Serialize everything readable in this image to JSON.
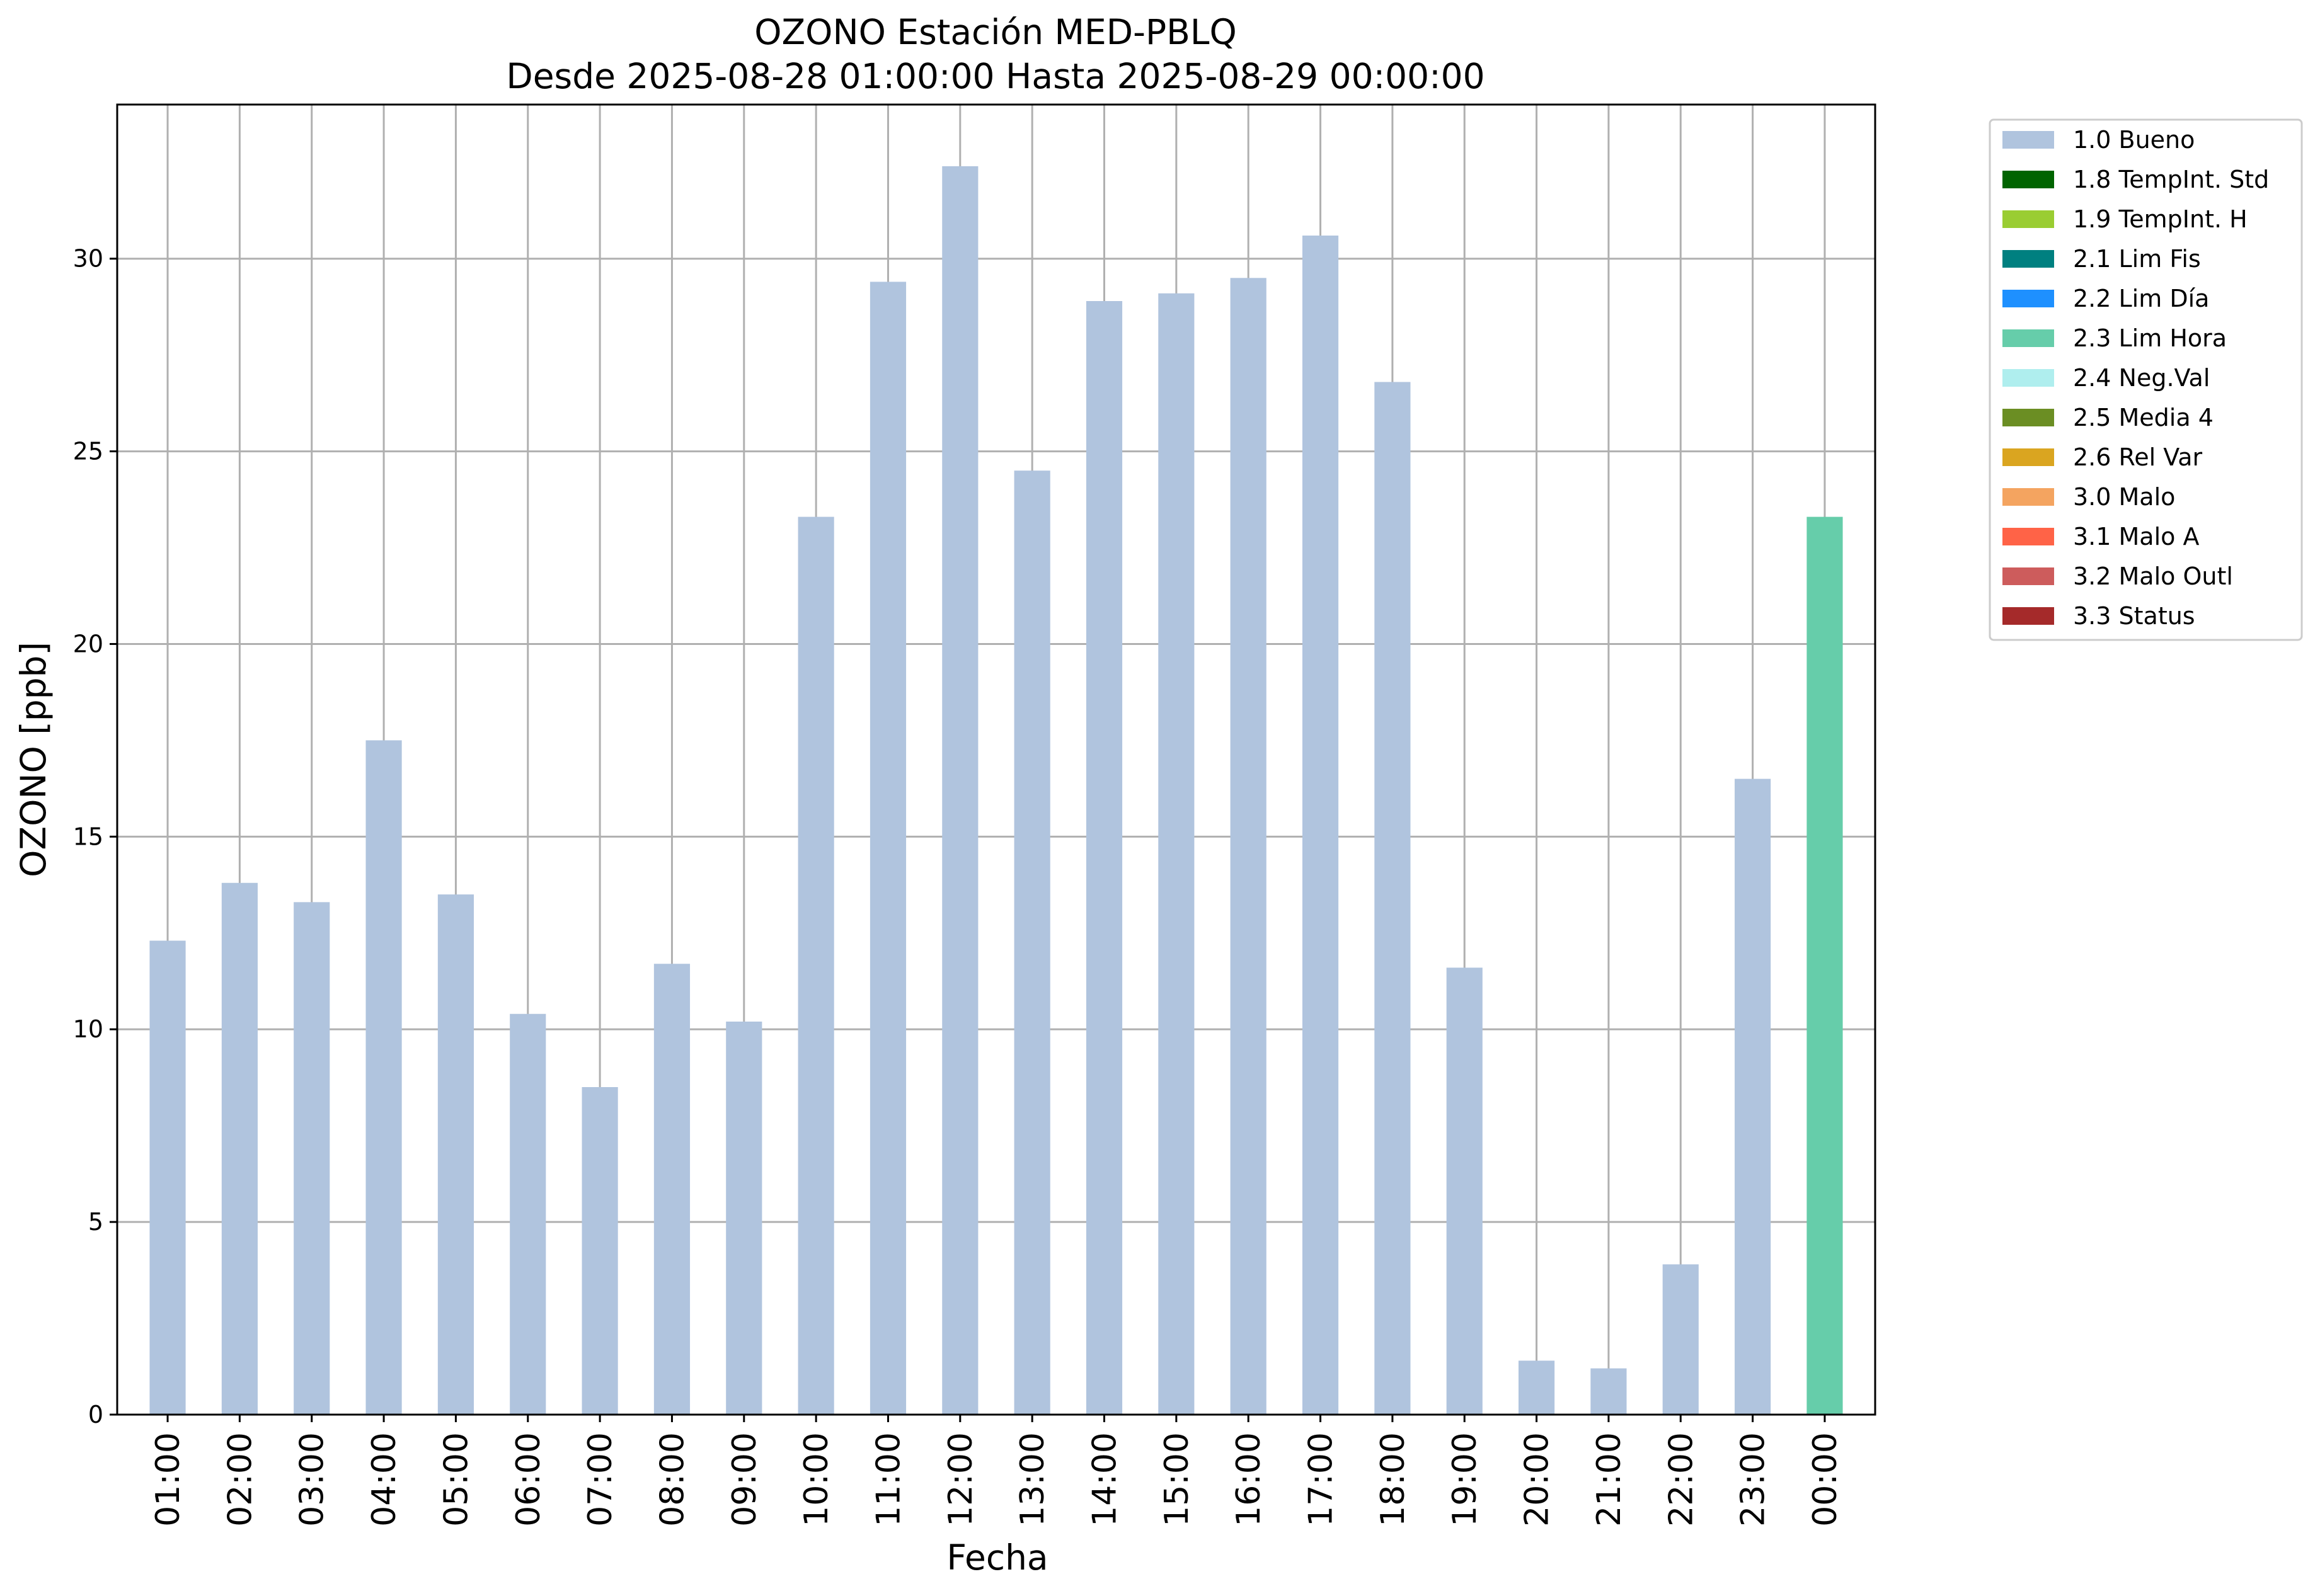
{
  "chart_data": {
    "type": "bar",
    "title": "OZONO Estación MED-PBLQ",
    "subtitle": "Desde 2025-08-28 01:00:00 Hasta 2025-08-29 00:00:00",
    "xlabel": "Fecha",
    "ylabel": "OZONO [ppb]",
    "ylim": [
      0,
      34
    ],
    "yticks": [
      0,
      5,
      10,
      15,
      20,
      25,
      30
    ],
    "grid": true,
    "legend_position": "outside-top-right",
    "categories": [
      "01:00",
      "02:00",
      "03:00",
      "04:00",
      "05:00",
      "06:00",
      "07:00",
      "08:00",
      "09:00",
      "10:00",
      "11:00",
      "12:00",
      "13:00",
      "14:00",
      "15:00",
      "16:00",
      "17:00",
      "18:00",
      "19:00",
      "20:00",
      "21:00",
      "22:00",
      "23:00",
      "00:00"
    ],
    "values": [
      12.3,
      13.8,
      13.3,
      17.5,
      13.5,
      10.4,
      8.5,
      11.7,
      10.2,
      23.3,
      29.4,
      32.4,
      24.5,
      28.9,
      29.1,
      29.5,
      30.6,
      26.8,
      11.6,
      1.4,
      1.2,
      3.9,
      16.5,
      23.3
    ],
    "bar_flags": [
      "1.0 Bueno",
      "1.0 Bueno",
      "1.0 Bueno",
      "1.0 Bueno",
      "1.0 Bueno",
      "1.0 Bueno",
      "1.0 Bueno",
      "1.0 Bueno",
      "1.0 Bueno",
      "1.0 Bueno",
      "1.0 Bueno",
      "1.0 Bueno",
      "1.0 Bueno",
      "1.0 Bueno",
      "1.0 Bueno",
      "1.0 Bueno",
      "1.0 Bueno",
      "1.0 Bueno",
      "1.0 Bueno",
      "1.0 Bueno",
      "1.0 Bueno",
      "1.0 Bueno",
      "1.0 Bueno",
      "2.3 Lim Hora"
    ],
    "legend": [
      {
        "label": "1.0 Bueno",
        "color": "#b0c4de"
      },
      {
        "label": "1.8 TempInt. Std",
        "color": "#006400"
      },
      {
        "label": "1.9 TempInt. H",
        "color": "#9acd32"
      },
      {
        "label": "2.1 Lim Fis",
        "color": "#008080"
      },
      {
        "label": "2.2 Lim Día",
        "color": "#1e90ff"
      },
      {
        "label": "2.3 Lim Hora",
        "color": "#66cdaa"
      },
      {
        "label": "2.4 Neg.Val",
        "color": "#afeeee"
      },
      {
        "label": "2.5 Media 4",
        "color": "#6b8e23"
      },
      {
        "label": "2.6 Rel Var",
        "color": "#daa520"
      },
      {
        "label": "3.0 Malo",
        "color": "#f4a460"
      },
      {
        "label": "3.1 Malo A",
        "color": "#ff6347"
      },
      {
        "label": "3.2 Malo Outl",
        "color": "#cd5c5c"
      },
      {
        "label": "3.3 Status",
        "color": "#a52a2a"
      }
    ]
  }
}
